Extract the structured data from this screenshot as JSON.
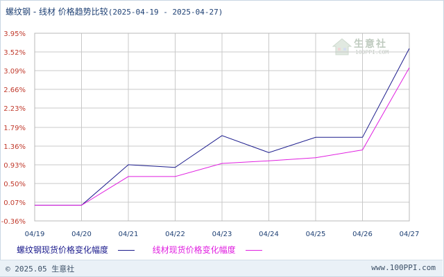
{
  "title": {
    "main": "螺纹钢 - 线材 价格趋势比较",
    "range": "(2025-04-19 - 2025-04-27)"
  },
  "watermark": {
    "logo_text": "生意社",
    "logo_sub": "100PPI.COM",
    "icon": "house-logo-icon"
  },
  "footer": {
    "copyright": "© 2025.05 生意社",
    "site": "www.100PPI.com"
  },
  "colors": {
    "series_1": "#1a1a8c",
    "series_2": "#e01fe0",
    "axis_labels_y": "#c0392b",
    "axis_labels_x": "#1d3f73",
    "grid": "#c8c8c8"
  },
  "chart_data": {
    "type": "line",
    "title": "螺纹钢 - 线材 价格趋势比较",
    "xlabel": "",
    "ylabel": "",
    "categories": [
      "04/19",
      "04/20",
      "04/21",
      "04/22",
      "04/23",
      "04/24",
      "04/25",
      "04/26",
      "04/27"
    ],
    "y_ticks": [
      "3.95%",
      "3.52%",
      "3.09%",
      "2.66%",
      "2.23%",
      "1.79%",
      "1.36%",
      "0.93%",
      "0.50%",
      "0.07%",
      "-0.36%"
    ],
    "y_tick_values": [
      3.95,
      3.52,
      3.09,
      2.66,
      2.23,
      1.79,
      1.36,
      0.93,
      0.5,
      0.07,
      -0.36
    ],
    "ylim": [
      -0.36,
      3.95
    ],
    "grid": true,
    "legend_position": "bottom-left",
    "series": [
      {
        "name": "螺纹钢现货价格变化幅度",
        "values": [
          0.0,
          0.0,
          0.93,
          0.87,
          1.6,
          1.21,
          1.56,
          1.56,
          3.6
        ]
      },
      {
        "name": "线材现货价格变化幅度",
        "values": [
          0.0,
          0.0,
          0.66,
          0.66,
          0.96,
          1.02,
          1.09,
          1.27,
          3.16
        ]
      }
    ]
  }
}
